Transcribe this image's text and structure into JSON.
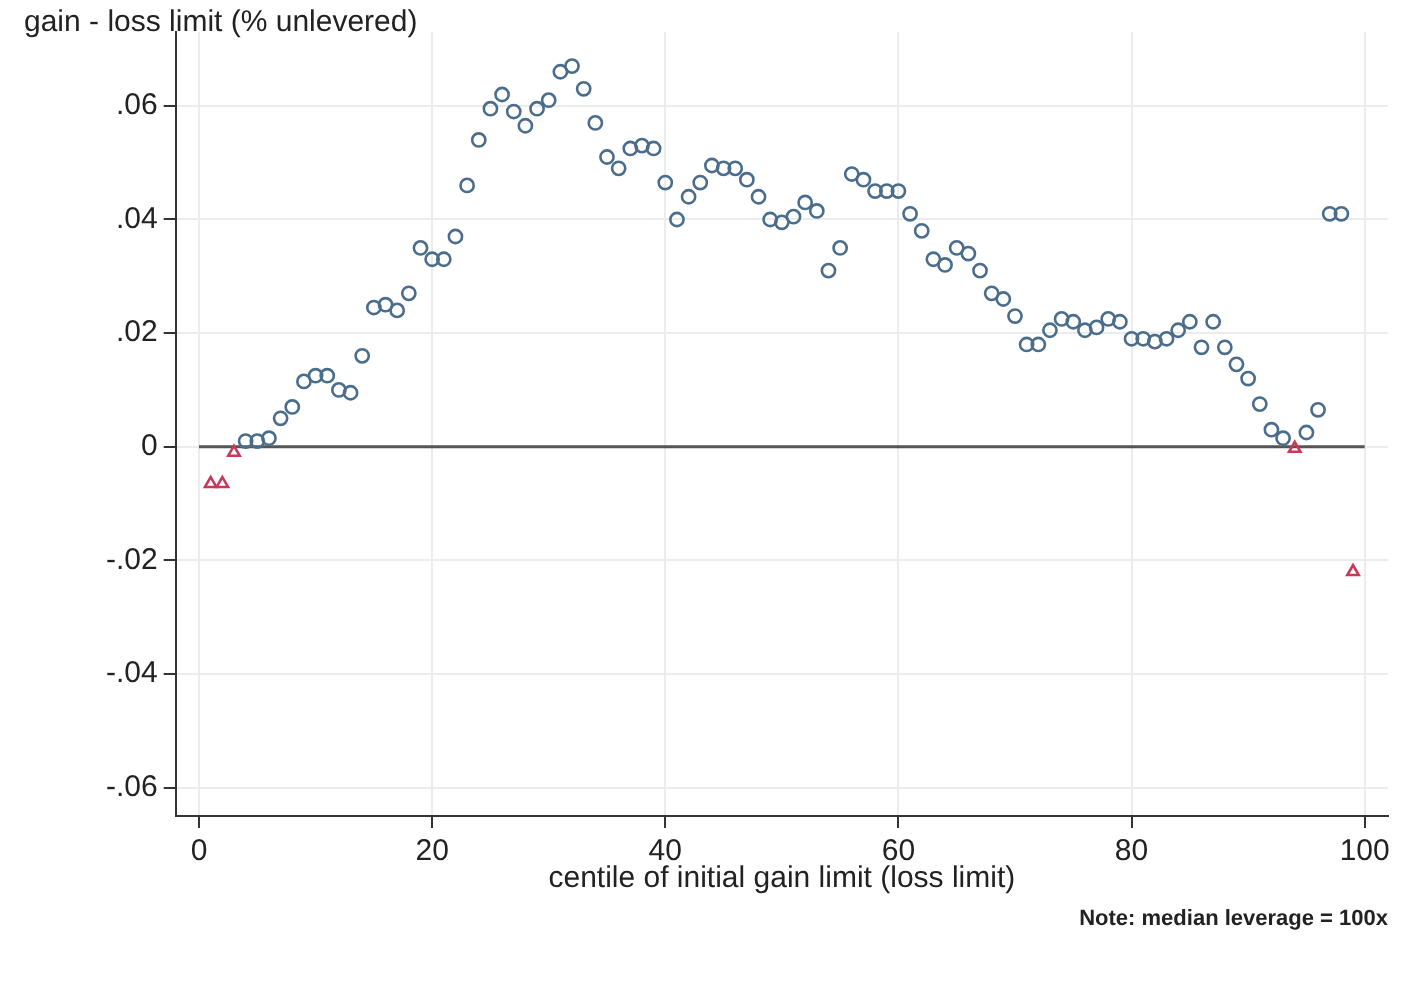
{
  "chart_data": {
    "type": "scatter",
    "ylabel": "gain - loss limit (% unlevered)",
    "xlabel": "centile of initial gain limit (loss limit)",
    "annotations": [
      "Note: median leverage = 100x"
    ],
    "series": [
      {
        "color": "#4a6d8c",
        "marker": "circle",
        "x": [
          4,
          5,
          6,
          7,
          8,
          9,
          10,
          11,
          12,
          13,
          14,
          15,
          16,
          17,
          18,
          19,
          20,
          21,
          22,
          23,
          24,
          25,
          26,
          27,
          28,
          29,
          30,
          31,
          32,
          33,
          34,
          35,
          36,
          37,
          38,
          39,
          40,
          41,
          42,
          43,
          44,
          45,
          46,
          47,
          48,
          49,
          50,
          51,
          52,
          53,
          54,
          55,
          56,
          57,
          58,
          59,
          60,
          61,
          62,
          63,
          64,
          65,
          66,
          67,
          68,
          69,
          70,
          71,
          72,
          73,
          74,
          75,
          76,
          77,
          78,
          79,
          80,
          81,
          82,
          83,
          84,
          85,
          86,
          87,
          88,
          89,
          90,
          91,
          92,
          93,
          95,
          96,
          97,
          98
        ],
        "values": [
          0.001,
          0.001,
          0.0015,
          0.005,
          0.007,
          0.0115,
          0.0125,
          0.0125,
          0.01,
          0.0095,
          0.016,
          0.0245,
          0.025,
          0.024,
          0.027,
          0.035,
          0.033,
          0.033,
          0.037,
          0.046,
          0.054,
          0.0595,
          0.062,
          0.059,
          0.0565,
          0.0595,
          0.061,
          0.066,
          0.067,
          0.063,
          0.057,
          0.051,
          0.049,
          0.0525,
          0.053,
          0.0525,
          0.0465,
          0.04,
          0.044,
          0.0465,
          0.0495,
          0.049,
          0.049,
          0.047,
          0.044,
          0.04,
          0.0395,
          0.0405,
          0.043,
          0.0415,
          0.031,
          0.035,
          0.048,
          0.047,
          0.045,
          0.045,
          0.045,
          0.041,
          0.038,
          0.033,
          0.032,
          0.035,
          0.034,
          0.031,
          0.027,
          0.026,
          0.023,
          0.018,
          0.018,
          0.0205,
          0.0225,
          0.022,
          0.0205,
          0.021,
          0.0225,
          0.022,
          0.019,
          0.019,
          0.0185,
          0.019,
          0.0205,
          0.022,
          0.0175,
          0.022,
          0.0175,
          0.0145,
          0.012,
          0.0075,
          0.003,
          0.0015,
          0.0025,
          0.0065,
          0.041,
          0.041
        ]
      },
      {
        "color": "#c8385a",
        "marker": "triangle",
        "x": [
          1,
          2,
          3,
          94,
          99
        ],
        "values": [
          -0.0065,
          -0.0065,
          -0.001,
          -0.0003,
          -0.022
        ]
      }
    ],
    "xlim": [
      -2,
      102
    ],
    "xticks": [
      0,
      20,
      40,
      60,
      80,
      100
    ],
    "ylim": [
      -0.065,
      0.073
    ],
    "yticks": [
      {
        "value": -0.06,
        "label": "-.06"
      },
      {
        "value": -0.04,
        "label": "-.04"
      },
      {
        "value": -0.02,
        "label": "-.02"
      },
      0,
      {
        "value": 0.02,
        "label": ".02"
      },
      {
        "value": 0.04,
        "label": ".04"
      },
      {
        "value": 0.06,
        "label": ".06"
      }
    ],
    "ref_lines": [
      {
        "axis": "y",
        "value": 0,
        "color": "#555555"
      }
    ],
    "grid": true,
    "legend": false
  }
}
